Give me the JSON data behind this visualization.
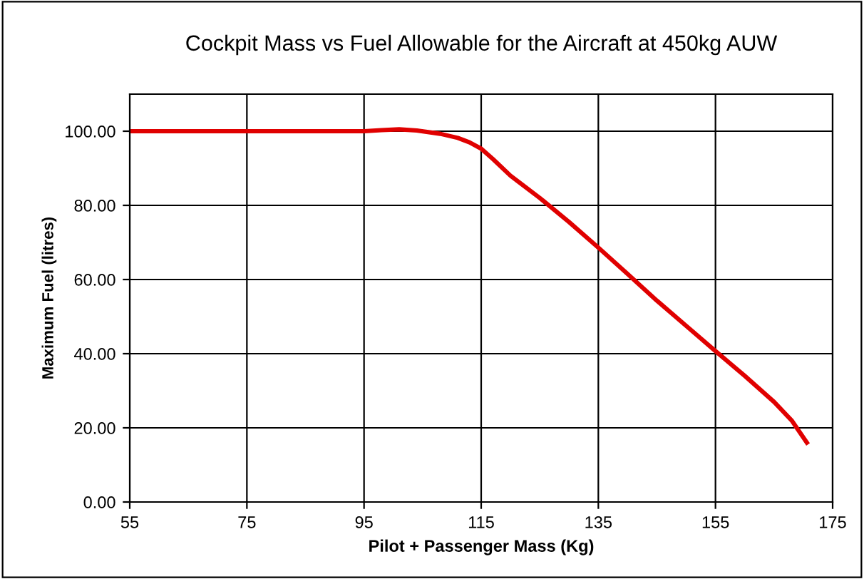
{
  "chart_data": {
    "type": "line",
    "title": "Cockpit Mass vs Fuel Allowable for the Aircraft at 450kg AUW",
    "xlabel": "Pilot + Passenger Mass (Kg)",
    "ylabel": "Maximum Fuel (litres)",
    "series": [
      {
        "color": "#e00000",
        "x": [
          55,
          75,
          95,
          98,
          101,
          104,
          108,
          111,
          113,
          115,
          117,
          120,
          125,
          130,
          135,
          140,
          145,
          150,
          155,
          160,
          165,
          168,
          170.6
        ],
        "values": [
          100,
          100,
          100,
          100.3,
          100.5,
          100.2,
          99.3,
          98.2,
          97,
          95.3,
          92.5,
          88,
          82,
          75.5,
          68.6,
          61.5,
          54.3,
          47.5,
          40.7,
          34,
          27,
          22,
          16
        ]
      }
    ],
    "xlim": [
      55,
      175
    ],
    "xticks": [
      55,
      75,
      95,
      115,
      135,
      155,
      175
    ],
    "ylim": [
      0,
      110
    ],
    "yticks": [
      {
        "value": 0,
        "label": "0.00"
      },
      {
        "value": 20,
        "label": "20.00"
      },
      {
        "value": 40,
        "label": "40.00"
      },
      {
        "value": 60,
        "label": "60.00"
      },
      {
        "value": 80,
        "label": "80.00"
      },
      {
        "value": 100,
        "label": "100.00"
      }
    ],
    "grid": true,
    "marker": "none",
    "line_style": "solid",
    "legend": false
  }
}
